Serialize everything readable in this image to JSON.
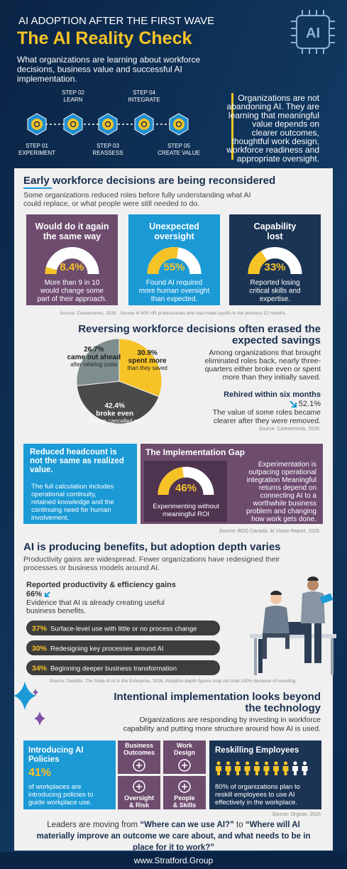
{
  "header": {
    "kicker": "AI ADOPTION AFTER THE FIRST WAVE",
    "title": "The AI Reality Check",
    "subtitle": [
      "What organizations are learning about workforce",
      "decisions, business value and successful AI",
      "implementation."
    ],
    "badge": "AI",
    "steps": [
      {
        "step": "STEP 01",
        "label": "EXPERIMENT"
      },
      {
        "step": "STEP 02",
        "label": "LEARN"
      },
      {
        "step": "STEP 03",
        "label": "REASSESS"
      },
      {
        "step": "STEP 04",
        "label": "INTEGRATE"
      },
      {
        "step": "STEP 05",
        "label": "CREATE VALUE"
      }
    ],
    "statement": [
      "Organizations are not",
      "abandoning AI. They are",
      "learning that meaningful",
      "value depends on",
      "clearer outcomes,",
      "thoughtful work design,",
      "workforce readiness and",
      "appropriate oversight."
    ]
  },
  "section1": {
    "title": "Early workforce decisions are being reconsidered",
    "intro": [
      "Some organizations reduced roles before fully understanding what AI",
      "could replace, or what people were still needed to do."
    ],
    "cards": [
      {
        "title": [
          "Would do it again",
          "the same way"
        ],
        "value": 8.4,
        "label": "8.4%",
        "text": [
          "More than 9 in 10",
          "would change some",
          "part of their approach."
        ],
        "color": "#6e4c6e"
      },
      {
        "title": [
          "Unexpected",
          "oversight"
        ],
        "value": 55,
        "label": "55%",
        "text": [
          "Found AI required",
          "more human oversight",
          "than expected."
        ],
        "color": "#1b9ad6"
      },
      {
        "title": [
          "Capability",
          "lost"
        ],
        "value": 33,
        "label": "33%",
        "text": [
          "Reported losing",
          "critical skills and",
          "expertise."
        ],
        "color": "#1c3454"
      }
    ],
    "source": "Source: Careerminds, 2026 · Survey of 600 HR professionals who had made layoffs in the previous 12 months."
  },
  "section2": {
    "title": [
      "Reversing workforce decisions often erased the",
      "expected savings"
    ],
    "pie": [
      {
        "value": 30.9,
        "label": "30.9%",
        "name": "spent more",
        "note": "than they saved",
        "color": "#f6c327"
      },
      {
        "value": 42.4,
        "label": "42.4%",
        "name": "broke even",
        "note": "savings cancelled out",
        "color": "#4a4a4a"
      },
      {
        "value": 26.7,
        "label": "26.7%",
        "name": "came out ahead",
        "note": "after rehiring costs",
        "color": "#7e8d8e"
      }
    ],
    "text": [
      "Among organizations that brought",
      "eliminated roles back, nearly three-",
      "quarters either broke even or spent",
      "more than they initially saved."
    ],
    "stat_title": "Rehired within six months",
    "stat": "52.1%",
    "stat_text": [
      "The value of some roles became",
      "clearer after they were removed."
    ],
    "source": "Source: Careerminds, 2026."
  },
  "section3": {
    "card": {
      "title": [
        "Reduced headcount is",
        "not the same as realized",
        "value."
      ],
      "text": [
        "The full calculation includes",
        "operational continuity,",
        "retained knowledge and the",
        "continuing need for human",
        "involvement."
      ]
    },
    "gap": {
      "title": "The Implementation Gap",
      "value": 46,
      "label": "46%",
      "caption": [
        "Experimenting without",
        "meaningful ROI"
      ],
      "text": [
        "Experimentation is",
        "outpacing operational",
        "integration Meaningful",
        "returns depend on",
        "connecting AI to a",
        "worthwhile business",
        "problem and changing",
        "how work gets done."
      ]
    },
    "source": "Source: BDO Canada, AI Vision Report, 2026."
  },
  "section4": {
    "title": "AI is producing benefits, but adoption depth varies",
    "intro": [
      "Productivity gains are widespread. Fewer organizations have redesigned their",
      "processes or business models around AI."
    ],
    "stat_title": "Reported productivity & efficiency gains",
    "stat": "66%",
    "stat_text": [
      "Evidence that AI is already creating useful",
      "business benefits."
    ],
    "pills": [
      {
        "label": "37%",
        "text": "Surface-level use with little or no process change"
      },
      {
        "label": "30%",
        "text": "Redesigning key processes around AI"
      },
      {
        "label": "34%",
        "text": "Beginning deeper business transformation"
      }
    ],
    "source": "Source: Deloitte, The State of AI in the Enterprise, 2026. Adoption-depth figures may not total 100% because of rounding."
  },
  "section5": {
    "title": [
      "Intentional implementation looks beyond",
      "the technology"
    ],
    "intro": [
      "Organizations are responding by investing in workforce",
      "capability and putting more structure around how AI is used."
    ],
    "policies": {
      "title": [
        "Introducing AI",
        "Policies"
      ],
      "stat": "41%",
      "text": [
        "of workplaces are",
        "introducing policies to",
        "guide workplace use."
      ]
    },
    "pillars": [
      [
        "Business",
        "Outcomes"
      ],
      [
        "Work",
        "Design"
      ],
      [
        "Oversight",
        "& Risk"
      ],
      [
        "People",
        "& Skills"
      ]
    ],
    "reskilling": {
      "title": "Reskilling Employees",
      "value": 80,
      "label": "80%",
      "text": [
        " of organizations plan to",
        "reskill employees to use AI",
        "effectively in the workplace."
      ]
    },
    "source": "Source: Orgvue, 2025"
  },
  "quote": [
    [
      {
        "text": "Leaders are moving from "
      },
      {
        "text": "“Where can we use AI?”",
        "bold": true
      },
      {
        "text": " to "
      },
      {
        "text": "“Where will AI",
        "bold": true
      }
    ],
    [
      {
        "text": "materially improve an outcome we care about, and what needs to be in",
        "bold": true
      }
    ],
    [
      {
        "text": "place for it to work?”",
        "bold": true
      }
    ]
  ],
  "footer": "www.Stratford.Group"
}
